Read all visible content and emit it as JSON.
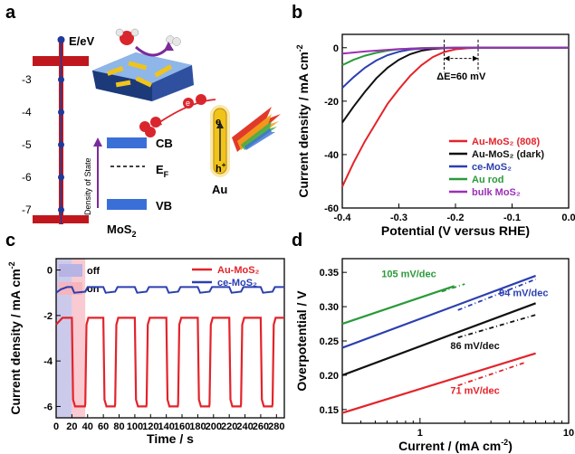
{
  "panel_labels": [
    "a",
    "b",
    "c",
    "d"
  ],
  "schematic": {
    "energy_axis_label": "E/eV",
    "energy_ticks": [
      "-3",
      "-4",
      "-5",
      "-6",
      "-7"
    ],
    "energy_tick_values": [
      -3,
      -4,
      -5,
      -6,
      -7
    ],
    "cb_label": "CB",
    "vb_label": "VB",
    "ef_label": "E",
    "ef_sub": "F",
    "dos_label": "Density of State",
    "mos2_label": "MoS",
    "mos2_sub": "2",
    "au_label": "Au",
    "electron_label": "e",
    "hole_label": "h",
    "hole_sup": "+",
    "colors": {
      "axis": "#c0171e",
      "dots": "#1f3a9a",
      "band": "#3a6fd8",
      "arrow": "#7a2a9a",
      "au": "#f0c419"
    }
  },
  "chart_data": [
    {
      "panel": "b",
      "type": "line",
      "xlabel": "Potential (V versus RHE)",
      "ylabel": "Current density / mA cm",
      "ylabel_sup": "-2",
      "xlim": [
        -0.4,
        0.0
      ],
      "ylim": [
        -60,
        5
      ],
      "xticks": [
        "-0.4",
        "-0.3",
        "-0.2",
        "-0.1",
        "0.0"
      ],
      "xtick_values": [
        -0.4,
        -0.3,
        -0.2,
        -0.1,
        0.0
      ],
      "yticks": [
        "0",
        "-20",
        "-40",
        "-60"
      ],
      "ytick_values": [
        0,
        -20,
        -40,
        -60
      ],
      "annotation": "ΔE=60 mV",
      "annotation_x": [
        -0.22,
        -0.16
      ],
      "legend_position": "bottom-right",
      "series": [
        {
          "name": "Au-MoS₂ (808)",
          "color": "#e4232a",
          "x": [
            -0.4,
            -0.38,
            -0.36,
            -0.34,
            -0.32,
            -0.3,
            -0.28,
            -0.26,
            -0.24,
            -0.22,
            -0.2,
            -0.18,
            -0.16,
            -0.14,
            -0.1,
            -0.05,
            0.0
          ],
          "y": [
            -52,
            -43,
            -35,
            -28,
            -21,
            -15.5,
            -10.5,
            -6.5,
            -3.5,
            -1.6,
            -0.6,
            -0.2,
            -0.05,
            0,
            0,
            0,
            0
          ]
        },
        {
          "name": "Au-MoS₂ (dark)",
          "color": "#111111",
          "x": [
            -0.4,
            -0.38,
            -0.36,
            -0.34,
            -0.32,
            -0.3,
            -0.28,
            -0.26,
            -0.24,
            -0.22,
            -0.2,
            -0.18,
            -0.16,
            -0.1,
            -0.05,
            0.0
          ],
          "y": [
            -28,
            -22,
            -16.5,
            -11.5,
            -7.5,
            -4.5,
            -2.4,
            -1.1,
            -0.45,
            -0.15,
            -0.05,
            0,
            0,
            0,
            0,
            0
          ]
        },
        {
          "name": "ce-MoS₂",
          "color": "#2b3fb0",
          "x": [
            -0.4,
            -0.38,
            -0.36,
            -0.34,
            -0.32,
            -0.3,
            -0.28,
            -0.26,
            -0.24,
            -0.22,
            -0.2,
            -0.1,
            0.0
          ],
          "y": [
            -15,
            -11,
            -7.5,
            -4.8,
            -2.8,
            -1.5,
            -0.7,
            -0.3,
            -0.1,
            -0.03,
            0,
            0,
            0
          ]
        },
        {
          "name": "Au rod",
          "color": "#2a9a3a",
          "x": [
            -0.4,
            -0.38,
            -0.36,
            -0.34,
            -0.32,
            -0.3,
            -0.28,
            -0.26,
            -0.24,
            -0.2,
            -0.1,
            0.0
          ],
          "y": [
            -6.5,
            -4.5,
            -3,
            -1.9,
            -1.1,
            -0.6,
            -0.3,
            -0.12,
            -0.04,
            0,
            0,
            0
          ]
        },
        {
          "name": "bulk MoS₂",
          "color": "#9b2fb5",
          "x": [
            -0.4,
            -0.36,
            -0.32,
            -0.3,
            -0.26,
            -0.2,
            -0.1,
            0.0
          ],
          "y": [
            -2.2,
            -1.4,
            -0.8,
            -0.5,
            -0.2,
            -0.05,
            0,
            0
          ]
        }
      ]
    },
    {
      "panel": "c",
      "type": "line",
      "xlabel": "Time / s",
      "ylabel": "Current density / mA cm",
      "ylabel_sup": "-2",
      "xlim": [
        0,
        290
      ],
      "ylim": [
        -6.5,
        0.5
      ],
      "xticks": [
        "0",
        "20",
        "40",
        "60",
        "80",
        "100",
        "120",
        "140",
        "160",
        "180",
        "200",
        "220",
        "240",
        "260",
        "280"
      ],
      "xtick_values": [
        0,
        20,
        40,
        60,
        80,
        100,
        120,
        140,
        160,
        180,
        200,
        220,
        240,
        260,
        280
      ],
      "yticks": [
        "0",
        "-2",
        "-4",
        "-6"
      ],
      "ytick_values": [
        0,
        -2,
        -4,
        -6
      ],
      "inset_legend": [
        {
          "label": "off",
          "color": "#b7b3e3",
          "x_range": [
            0,
            20
          ]
        },
        {
          "label": "on",
          "color": "#f6b4bd",
          "x_range": [
            20,
            37
          ]
        }
      ],
      "legend_position": "top-right",
      "series": [
        {
          "name": "Au-MoS₂",
          "color": "#e4232a",
          "on_level": -6.0,
          "off_level": -2.1,
          "start_level": -2.4,
          "cycles": [
            [
              20,
              37
            ],
            [
              60,
              75
            ],
            [
              100,
              115
            ],
            [
              140,
              155
            ],
            [
              180,
              195
            ],
            [
              220,
              235
            ],
            [
              260,
              275
            ]
          ]
        },
        {
          "name": "ce-MoS₂",
          "color": "#2b3fb0",
          "base_level": -0.75,
          "dip_level": -1.0,
          "initial_level": -1.0
        }
      ]
    },
    {
      "panel": "d",
      "type": "line",
      "xlabel": "Current / (mA cm",
      "xlabel_sup": "-2",
      "xlabel_end": ")",
      "ylabel": "Overpotential / V",
      "xscale": "log",
      "xlim": [
        0.3,
        10
      ],
      "ylim": [
        0.13,
        0.37
      ],
      "xticks": [
        "1",
        "10"
      ],
      "xtick_values": [
        1,
        10
      ],
      "yticks": [
        "0.15",
        "0.20",
        "0.25",
        "0.30",
        "0.35"
      ],
      "ytick_values": [
        0.15,
        0.2,
        0.25,
        0.3,
        0.35
      ],
      "series": [
        {
          "name": "ce-MoS₂",
          "color": "#2b3fb0",
          "x": [
            0.3,
            6
          ],
          "y": [
            0.24,
            0.345
          ],
          "fit_x": [
            1.8,
            6
          ],
          "fit_y": [
            0.295,
            0.34
          ],
          "label": "94 mV/dec"
        },
        {
          "name": "Au rod",
          "color": "#2a9a3a",
          "x": [
            0.3,
            1.7
          ],
          "y": [
            0.275,
            0.33
          ],
          "fit_x": [
            1.4,
            2.0
          ],
          "fit_y": [
            0.322,
            0.333
          ],
          "label": "105 mV/dec"
        },
        {
          "name": "Au-MoS₂ (dark)",
          "color": "#111111",
          "x": [
            0.3,
            6
          ],
          "y": [
            0.2,
            0.305
          ],
          "fit_x": [
            1.8,
            6
          ],
          "fit_y": [
            0.255,
            0.288
          ],
          "label": "86 mV/dec"
        },
        {
          "name": "Au-MoS₂ (808)",
          "color": "#e4232a",
          "x": [
            0.3,
            6
          ],
          "y": [
            0.145,
            0.232
          ],
          "fit_x": [
            1.8,
            5
          ],
          "fit_y": [
            0.185,
            0.218
          ],
          "label": "71 mV/dec"
        }
      ]
    }
  ]
}
